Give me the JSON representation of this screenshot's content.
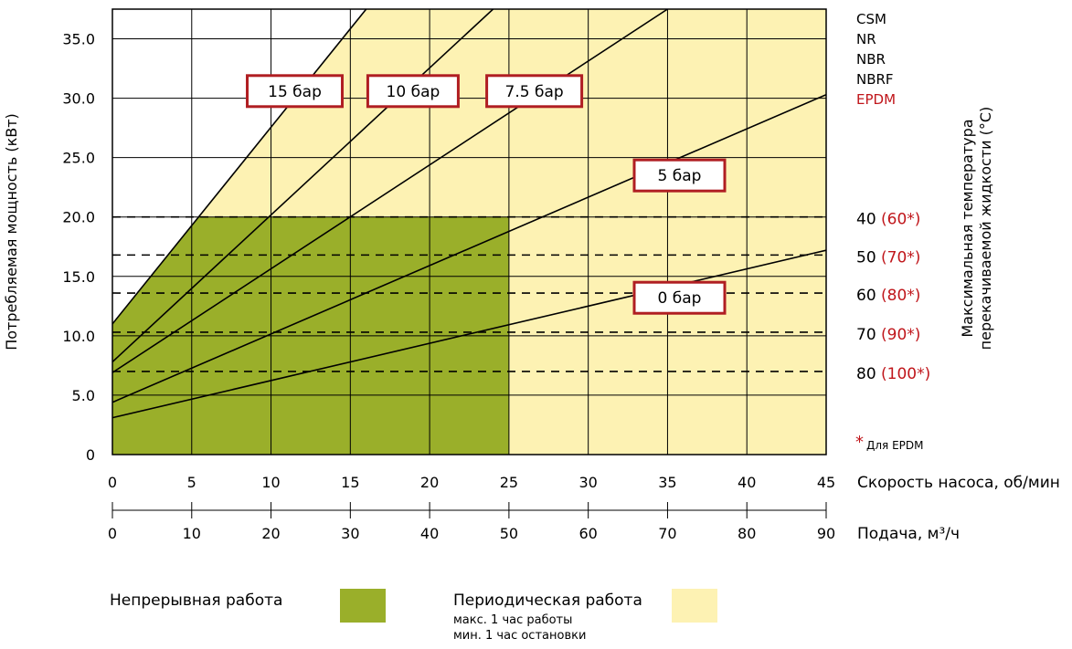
{
  "chart_data": {
    "type": "line",
    "ylabel": "Потребляемая мощность (кВт)",
    "y_ticks": [
      "0",
      "5.0",
      "10.0",
      "15.0",
      "20.0",
      "25.0",
      "30.0",
      "35.0"
    ],
    "ylim": [
      0,
      37.5
    ],
    "xlim": [
      0,
      45
    ],
    "x_axis_label": "Скорость насоса, об/мин",
    "x_ticks": [
      "0",
      "5",
      "10",
      "15",
      "20",
      "25",
      "30",
      "35",
      "40",
      "45"
    ],
    "x2_axis_label": "Подача, м³/ч",
    "x2_ticks": [
      "0",
      "10",
      "20",
      "30",
      "40",
      "50",
      "60",
      "70",
      "80",
      "90"
    ],
    "grid": true,
    "series": [
      {
        "name": "15 бар",
        "x": [
          0,
          16
        ],
        "y": [
          11.0,
          37.5
        ]
      },
      {
        "name": "10 бар",
        "x": [
          0,
          24
        ],
        "y": [
          7.8,
          37.5
        ]
      },
      {
        "name": "7.5 бар",
        "x": [
          0,
          35
        ],
        "y": [
          6.9,
          37.5
        ]
      },
      {
        "name": "5 бар",
        "x": [
          0,
          45
        ],
        "y": [
          4.4,
          30.3
        ]
      },
      {
        "name": "0 бар",
        "x": [
          0,
          45
        ],
        "y": [
          3.1,
          17.2
        ]
      }
    ],
    "regions": [
      {
        "name": "Непрерывная работа",
        "color": "#9aaf2a",
        "x_max": 25,
        "y_max": 20
      },
      {
        "name": "Периодическая работа",
        "color": "#fdf2b3"
      }
    ],
    "temperature_lines": [
      {
        "power": 20.0,
        "temp": "40",
        "epdm": "(60*)"
      },
      {
        "power": 16.8,
        "temp": "50",
        "epdm": "(70*)"
      },
      {
        "power": 13.6,
        "temp": "60",
        "epdm": "(80*)"
      },
      {
        "power": 10.3,
        "temp": "70",
        "epdm": "(90*)"
      },
      {
        "power": 7.0,
        "temp": "80",
        "epdm": "(100*)"
      }
    ],
    "elastomers": [
      "CSM",
      "NR",
      "NBR",
      "NBRF",
      "EPDM"
    ],
    "right_axis_label": [
      "Максимальная температура",
      "перекачиваемой жидкости (°C)"
    ],
    "footnote_star": "*",
    "footnote_text": "Для EPDM"
  },
  "legend": {
    "continuous": "Непрерывная работа",
    "periodic": "Периодическая работа",
    "periodic_note1": "макс. 1 час работы",
    "periodic_note2": "мин. 1 час остановки"
  },
  "colors": {
    "continuous": "#9aaf2a",
    "periodic": "#fdf2b3",
    "accent_red": "#c0161b",
    "label_border": "#b01e22"
  }
}
